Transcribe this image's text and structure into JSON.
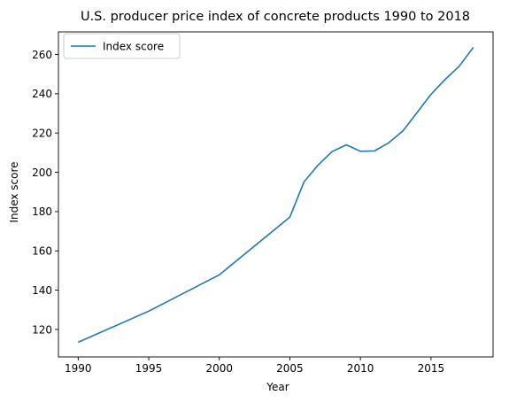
{
  "chart_data": {
    "type": "line",
    "title": "U.S. producer price index of concrete products 1990 to 2018",
    "xlabel": "Year",
    "ylabel": "Index score",
    "xlim": [
      1988.6,
      2019.4
    ],
    "ylim": [
      106,
      271.5
    ],
    "x_ticks": [
      1990,
      1995,
      2000,
      2005,
      2010,
      2015
    ],
    "y_ticks": [
      120,
      140,
      160,
      180,
      200,
      220,
      240,
      260
    ],
    "grid": false,
    "legend_position": "top-left",
    "series": [
      {
        "name": "Index score",
        "color": "#1f77b4",
        "x": [
          1990,
          1995,
          2000,
          2005,
          2006,
          2007,
          2008,
          2009,
          2010,
          2011,
          2012,
          2013,
          2014,
          2015,
          2016,
          2017,
          2018
        ],
        "y": [
          113.5,
          129.3,
          147.8,
          177.2,
          195.1,
          203.7,
          210.6,
          214.0,
          210.7,
          210.9,
          215.0,
          221.0,
          230.3,
          239.7,
          247.3,
          254.0,
          263.6
        ]
      }
    ]
  }
}
